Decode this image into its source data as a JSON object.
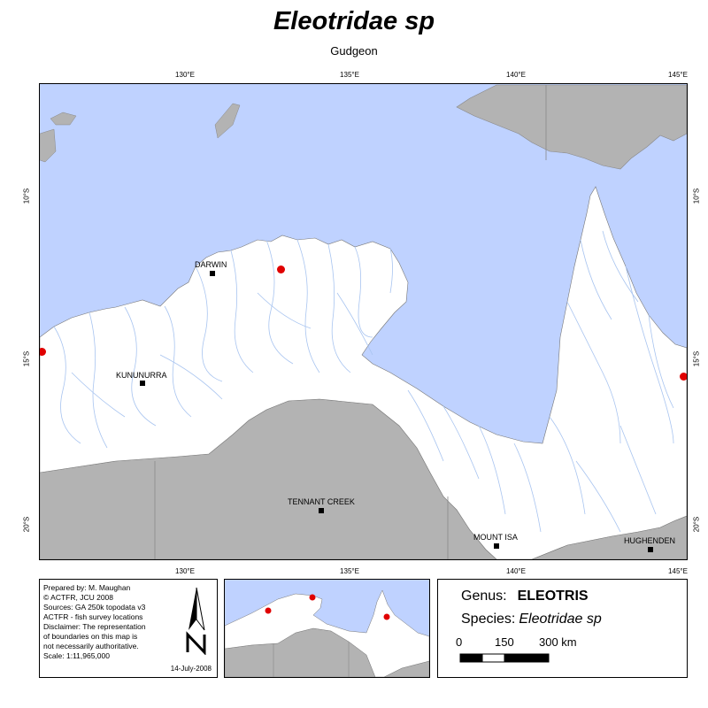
{
  "header": {
    "title": "Eleotridae sp",
    "subtitle": "Gudgeon"
  },
  "graticule": {
    "longitudes": [
      "130°E",
      "135°E",
      "140°E",
      "145°E"
    ],
    "latitudes": [
      "10°S",
      "15°S",
      "20°S"
    ]
  },
  "map": {
    "colors": {
      "sea": "#bfd2ff",
      "land": "#ffffff",
      "outside": "#b3b3b3",
      "rivers": "#a8c4f0",
      "record": "#e00000"
    },
    "towns": [
      {
        "id": "darwin",
        "label": "DARWIN"
      },
      {
        "id": "kununurra",
        "label": "KUNUNURRA"
      },
      {
        "id": "tennant",
        "label": "TENNANT CREEK"
      },
      {
        "id": "mountisa",
        "label": "MOUNT ISA"
      },
      {
        "id": "hughenden",
        "label": "HUGHENDEN"
      }
    ]
  },
  "info": {
    "lines": [
      "Prepared by: M. Maughan",
      "© ACTFR, JCU 2008",
      "Sources: GA 250k topodata v3",
      "ACTFR - fish survey locations",
      "Disclaimer: The representation",
      "of boundaries on this map is",
      "not necessarily authoritative.",
      "Scale: 1:11,965,000"
    ],
    "date": "14-July-2008"
  },
  "legend": {
    "genus_label": "Genus:",
    "genus_value": "ELEOTRIS",
    "species_label": "Species:",
    "species_value": "Eleotridae sp",
    "scale_labels": [
      "0",
      "150",
      "300 km"
    ]
  }
}
